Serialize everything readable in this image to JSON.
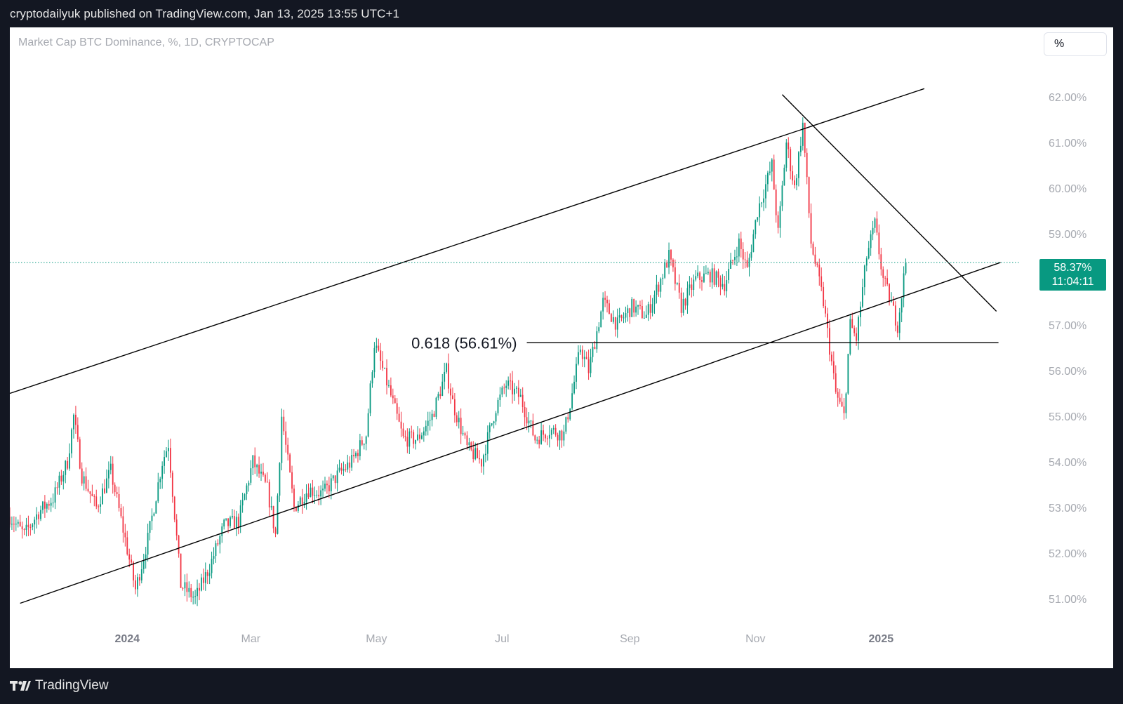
{
  "header": {
    "published_line": "cryptodailyuk published on TradingView.com, Jan 13, 2025 13:55 UTC+1"
  },
  "legend": {
    "symbol_title": "Market Cap BTC Dominance, %, 1D, CRYPTOCAP"
  },
  "scale_button": {
    "label": "%"
  },
  "last_price": {
    "value_label": "58.37%",
    "countdown": "11:04:11"
  },
  "footer": {
    "brand": "TradingView",
    "logo_icon": "tradingview-logo-icon"
  },
  "colors": {
    "up": "#089981",
    "down": "#f23645",
    "axis_text": "#a6a9b0",
    "drawing": "#000000",
    "last_price_line": "#089981"
  },
  "chart_data": {
    "type": "candlestick",
    "title": "Market Cap BTC Dominance, %, 1D, CRYPTOCAP",
    "x_ticks": [
      "2024",
      "Mar",
      "May",
      "Jul",
      "Sep",
      "Nov",
      "2025"
    ],
    "x_ticks_bold": [
      "2024",
      "2025"
    ],
    "y_ticks": [
      "51.00%",
      "52.00%",
      "53.00%",
      "54.00%",
      "55.00%",
      "56.00%",
      "57.00%",
      "58.00%",
      "59.00%",
      "60.00%",
      "61.00%",
      "62.00%"
    ],
    "ylim": [
      50.3,
      62.6
    ],
    "xlim": [
      "2023-11-05",
      "2025-03-08"
    ],
    "grid": false,
    "last_value": 58.37,
    "annotations": [
      {
        "text": "0.618 (56.61%)",
        "level": 56.61
      }
    ],
    "trendlines": [
      {
        "name": "channel-top",
        "from": [
          "2023-11-05",
          55.5
        ],
        "to": [
          "2025-01-22",
          62.18
        ]
      },
      {
        "name": "channel-bottom",
        "from": [
          "2023-11-10",
          50.9
        ],
        "to": [
          "2025-02-28",
          58.37
        ]
      },
      {
        "name": "descending-resistance",
        "from": [
          "2024-11-14",
          62.05
        ],
        "to": [
          "2025-02-26",
          57.3
        ]
      },
      {
        "name": "fib-0.618",
        "from": [
          "2024-07-13",
          56.61
        ],
        "to": [
          "2025-02-27",
          56.61
        ]
      }
    ],
    "price_path": [
      [
        "2023-11-05",
        52.8
      ],
      [
        "2023-11-12",
        52.4
      ],
      [
        "2023-11-19",
        52.9
      ],
      [
        "2023-11-26",
        53.2
      ],
      [
        "2023-12-03",
        54.0
      ],
      [
        "2023-12-06",
        55.0
      ],
      [
        "2023-12-10",
        53.7
      ],
      [
        "2023-12-17",
        53.0
      ],
      [
        "2023-12-24",
        53.8
      ],
      [
        "2023-12-31",
        52.3
      ],
      [
        "2024-01-05",
        51.2
      ],
      [
        "2024-01-11",
        52.3
      ],
      [
        "2024-01-18",
        54.0
      ],
      [
        "2024-01-21",
        54.4
      ],
      [
        "2024-01-27",
        51.3
      ],
      [
        "2024-02-03",
        51.0
      ],
      [
        "2024-02-10",
        51.7
      ],
      [
        "2024-02-17",
        52.6
      ],
      [
        "2024-02-24",
        52.7
      ],
      [
        "2024-03-02",
        54.0
      ],
      [
        "2024-03-09",
        53.4
      ],
      [
        "2024-03-13",
        52.4
      ],
      [
        "2024-03-16",
        55.0
      ],
      [
        "2024-03-22",
        53.0
      ],
      [
        "2024-03-29",
        53.4
      ],
      [
        "2024-04-05",
        53.3
      ],
      [
        "2024-04-12",
        53.7
      ],
      [
        "2024-04-19",
        54.0
      ],
      [
        "2024-04-26",
        54.6
      ],
      [
        "2024-04-30",
        56.6
      ],
      [
        "2024-05-07",
        55.6
      ],
      [
        "2024-05-14",
        54.5
      ],
      [
        "2024-05-21",
        54.5
      ],
      [
        "2024-05-28",
        55.0
      ],
      [
        "2024-06-04",
        56.0
      ],
      [
        "2024-06-07",
        55.3
      ],
      [
        "2024-06-14",
        54.3
      ],
      [
        "2024-06-21",
        54.0
      ],
      [
        "2024-06-28",
        55.2
      ],
      [
        "2024-07-03",
        55.7
      ],
      [
        "2024-07-10",
        55.4
      ],
      [
        "2024-07-17",
        54.5
      ],
      [
        "2024-07-24",
        54.7
      ],
      [
        "2024-07-31",
        54.6
      ],
      [
        "2024-08-04",
        55.5
      ],
      [
        "2024-08-08",
        56.5
      ],
      [
        "2024-08-12",
        56.0
      ],
      [
        "2024-08-19",
        57.5
      ],
      [
        "2024-08-26",
        57.0
      ],
      [
        "2024-09-02",
        57.4
      ],
      [
        "2024-09-09",
        57.2
      ],
      [
        "2024-09-16",
        58.0
      ],
      [
        "2024-09-20",
        58.5
      ],
      [
        "2024-09-26",
        57.4
      ],
      [
        "2024-10-03",
        58.0
      ],
      [
        "2024-10-10",
        58.1
      ],
      [
        "2024-10-17",
        57.9
      ],
      [
        "2024-10-24",
        58.8
      ],
      [
        "2024-10-28",
        58.2
      ],
      [
        "2024-11-02",
        59.5
      ],
      [
        "2024-11-09",
        60.5
      ],
      [
        "2024-11-12",
        59.0
      ],
      [
        "2024-11-16",
        61.0
      ],
      [
        "2024-11-20",
        60.0
      ],
      [
        "2024-11-24",
        61.4
      ],
      [
        "2024-11-28",
        58.8
      ],
      [
        "2024-12-04",
        57.5
      ],
      [
        "2024-12-10",
        55.5
      ],
      [
        "2024-12-14",
        55.0
      ],
      [
        "2024-12-17",
        57.0
      ],
      [
        "2024-12-20",
        56.7
      ],
      [
        "2024-12-25",
        58.5
      ],
      [
        "2024-12-29",
        59.2
      ],
      [
        "2025-01-02",
        58.0
      ],
      [
        "2025-01-05",
        57.6
      ],
      [
        "2025-01-09",
        57.0
      ],
      [
        "2025-01-13",
        58.37
      ]
    ]
  }
}
